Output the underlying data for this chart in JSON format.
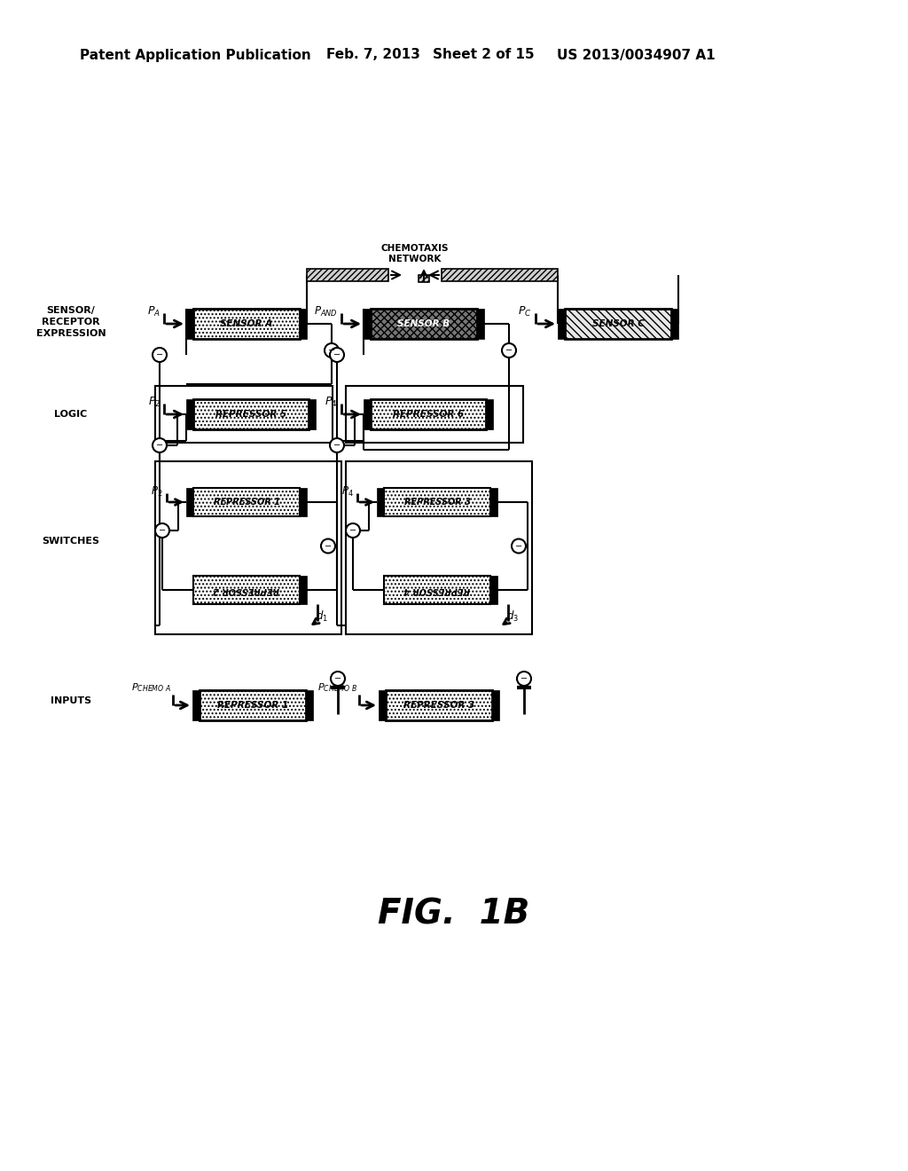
{
  "header_left": "Patent Application Publication",
  "header_mid1": "Feb. 7, 2013",
  "header_mid2": "Sheet 2 of 15",
  "header_right": "US 2013/0034907 A1",
  "fig_label": "FIG.  1B",
  "bg": "#ffffff",
  "tc": "#000000",
  "label_sensor": [
    "SENSOR/",
    "RECEPTOR",
    "EXPRESSION"
  ],
  "label_logic": "LOGIC",
  "label_switches": "SWITCHES",
  "label_inputs": "INPUTS",
  "chemo_line1": "CHEMOTAXIS",
  "chemo_line2": "NETWORK"
}
